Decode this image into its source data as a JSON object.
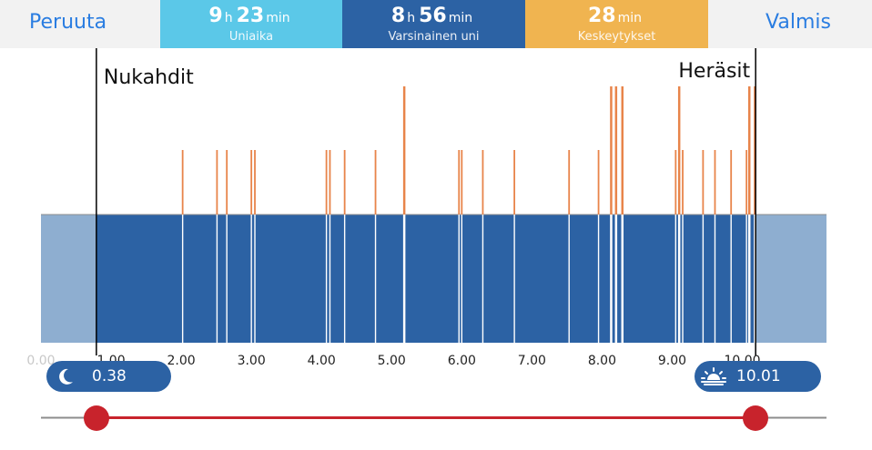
{
  "header": {
    "cancel_label": "Peruuta",
    "done_label": "Valmis"
  },
  "stats": {
    "sleep_time": {
      "hours": "9",
      "hours_unit": "h",
      "minutes": "23",
      "minutes_unit": "min",
      "label": "Uniaika",
      "color": "#5bc8e8"
    },
    "actual_sleep": {
      "hours": "8",
      "hours_unit": "h",
      "minutes": "56",
      "minutes_unit": "min",
      "label": "Varsinainen uni",
      "color": "#2c62a4"
    },
    "interruptions": {
      "count": "28",
      "unit": "min",
      "label": "Keskeytykset",
      "color": "#f0b450"
    }
  },
  "chart": {
    "fell_asleep_label": "Nukahdit",
    "woke_up_label": "Heräsit",
    "x_ticks": [
      "0.00",
      "1.00",
      "2.00",
      "3.00",
      "4.00",
      "5.00",
      "6.00",
      "7.00",
      "8.00",
      "9.00",
      "10.00"
    ],
    "x_range": [
      0,
      11.2
    ],
    "sleep_start": 0.79,
    "sleep_end": 10.19,
    "colors": {
      "sleep": "#2c62a4",
      "outside": "#8eaed0",
      "event": "#e8844a",
      "baseline": "#8c8c8c"
    },
    "events": [
      {
        "t": 2.02,
        "level": "medium"
      },
      {
        "t": 2.51,
        "level": "medium"
      },
      {
        "t": 2.65,
        "level": "medium"
      },
      {
        "t": 3.0,
        "level": "medium"
      },
      {
        "t": 3.05,
        "level": "medium"
      },
      {
        "t": 4.07,
        "level": "medium"
      },
      {
        "t": 4.12,
        "level": "medium"
      },
      {
        "t": 4.33,
        "level": "medium"
      },
      {
        "t": 4.77,
        "level": "medium"
      },
      {
        "t": 5.18,
        "level": "high"
      },
      {
        "t": 5.96,
        "level": "medium"
      },
      {
        "t": 6.0,
        "level": "medium"
      },
      {
        "t": 6.3,
        "level": "medium"
      },
      {
        "t": 6.75,
        "level": "medium"
      },
      {
        "t": 7.53,
        "level": "medium"
      },
      {
        "t": 7.95,
        "level": "medium"
      },
      {
        "t": 8.13,
        "level": "high"
      },
      {
        "t": 8.2,
        "level": "high"
      },
      {
        "t": 8.29,
        "level": "high"
      },
      {
        "t": 9.05,
        "level": "medium"
      },
      {
        "t": 9.1,
        "level": "high"
      },
      {
        "t": 9.15,
        "level": "medium"
      },
      {
        "t": 9.44,
        "level": "medium"
      },
      {
        "t": 9.61,
        "level": "medium"
      },
      {
        "t": 9.84,
        "level": "medium"
      },
      {
        "t": 10.06,
        "level": "medium"
      },
      {
        "t": 10.1,
        "level": "high"
      },
      {
        "t": 10.18,
        "level": "high"
      }
    ]
  },
  "range": {
    "start_value": "0.38",
    "end_value": "10.01",
    "start_icon": "moon-icon",
    "end_icon": "sunrise-icon",
    "track_color": "#c8232c"
  }
}
